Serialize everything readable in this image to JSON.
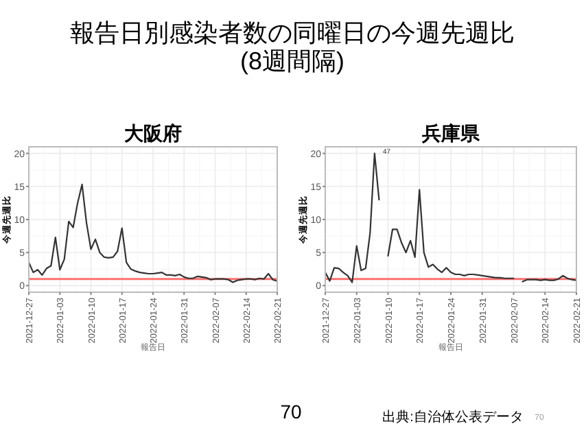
{
  "chart_data": [
    {
      "type": "line",
      "title": "大阪府",
      "xlabel": "報告日",
      "ylabel": "今週先週比",
      "annotations": [
        "報告日別感染者数の同曜日の今週先週比\n(8週間隔)",
        "70",
        "出典:自治体公表データ",
        "70"
      ],
      "x": [
        "2021-12-27",
        "2021-12-28",
        "2021-12-29",
        "2021-12-30",
        "2021-12-31",
        "2022-01-01",
        "2022-01-02",
        "2022-01-03",
        "2022-01-04",
        "2022-01-05",
        "2022-01-06",
        "2022-01-07",
        "2022-01-08",
        "2022-01-09",
        "2022-01-10",
        "2022-01-11",
        "2022-01-12",
        "2022-01-13",
        "2022-01-14",
        "2022-01-15",
        "2022-01-16",
        "2022-01-17",
        "2022-01-18",
        "2022-01-19",
        "2022-01-20",
        "2022-01-21",
        "2022-01-22",
        "2022-01-23",
        "2022-01-24",
        "2022-01-25",
        "2022-01-26",
        "2022-01-27",
        "2022-01-28",
        "2022-01-29",
        "2022-01-30",
        "2022-01-31",
        "2022-02-01",
        "2022-02-02",
        "2022-02-03",
        "2022-02-04",
        "2022-02-05",
        "2022-02-06",
        "2022-02-07",
        "2022-02-08",
        "2022-02-09",
        "2022-02-10",
        "2022-02-11",
        "2022-02-12",
        "2022-02-13",
        "2022-02-14",
        "2022-02-15",
        "2022-02-16",
        "2022-02-17",
        "2022-02-18",
        "2022-02-19",
        "2022-02-20",
        "2022-02-21"
      ],
      "series": [
        {
          "color": "#333333",
          "values": [
            3.5,
            2.0,
            2.4,
            1.6,
            2.6,
            3.0,
            7.3,
            2.4,
            4.0,
            9.7,
            8.8,
            12.5,
            15.3,
            9.5,
            5.5,
            7.0,
            5.0,
            4.3,
            4.2,
            4.3,
            5.2,
            8.7,
            3.5,
            2.5,
            2.2,
            2.0,
            1.9,
            1.8,
            1.8,
            1.9,
            2.0,
            1.6,
            1.6,
            1.5,
            1.7,
            1.3,
            1.1,
            1.1,
            1.4,
            1.3,
            1.2,
            0.9,
            1.0,
            1.0,
            1.0,
            0.9,
            0.5,
            0.8,
            0.9,
            1.0,
            1.0,
            0.9,
            1.1,
            1.0,
            1.8,
            0.9,
            0.7
          ]
        }
      ],
      "ref_lines": [
        {
          "axis": "y",
          "value": 1,
          "color": "#ff7070"
        }
      ],
      "xlim": [
        "2021-12-27",
        "2022-02-21"
      ],
      "xticks": [
        "2021-12-27",
        "2022-01-03",
        "2022-01-10",
        "2022-01-17",
        "2022-01-24",
        "2022-01-31",
        "2022-02-07",
        "2022-02-14",
        "2022-02-21"
      ],
      "ylim": [
        -1,
        21
      ],
      "yticks": [
        0,
        5,
        10,
        15,
        20
      ],
      "grid": true
    },
    {
      "type": "line",
      "title": "兵庫県",
      "xlabel": "報告日",
      "ylabel": "今週先週比",
      "annotations": [
        "47"
      ],
      "series": [
        {
          "color": "#333333",
          "x": [
            "2021-12-27",
            "2021-12-28",
            "2021-12-29",
            "2021-12-30",
            "2021-12-31",
            "2022-01-01",
            "2022-01-02",
            "2022-01-03",
            "2022-01-04",
            "2022-01-05",
            "2022-01-06",
            "2022-01-07",
            "2022-01-08"
          ],
          "values": [
            2.0,
            0.7,
            2.7,
            2.6,
            2.0,
            1.5,
            0.5,
            6.0,
            2.3,
            2.6,
            8.0,
            20.0,
            13.0
          ]
        },
        {
          "color": "#333333",
          "x": [
            "2022-01-10",
            "2022-01-11",
            "2022-01-12",
            "2022-01-13",
            "2022-01-14",
            "2022-01-15",
            "2022-01-16",
            "2022-01-17",
            "2022-01-18",
            "2022-01-19",
            "2022-01-20",
            "2022-01-21",
            "2022-01-22",
            "2022-01-23",
            "2022-01-24",
            "2022-01-25",
            "2022-01-26",
            "2022-01-27",
            "2022-01-28",
            "2022-01-29",
            "2022-01-30",
            "2022-01-31",
            "2022-02-01",
            "2022-02-02",
            "2022-02-03",
            "2022-02-04",
            "2022-02-05",
            "2022-02-06",
            "2022-02-07"
          ],
          "values": [
            4.5,
            8.5,
            8.5,
            6.5,
            5.0,
            6.8,
            4.3,
            14.5,
            5.0,
            2.8,
            3.2,
            2.5,
            2.0,
            2.7,
            2.0,
            1.7,
            1.7,
            1.5,
            1.7,
            1.7,
            1.6,
            1.5,
            1.4,
            1.3,
            1.2,
            1.2,
            1.1,
            1.1,
            1.1
          ]
        },
        {
          "color": "#333333",
          "x": [
            "2022-02-09",
            "2022-02-10",
            "2022-02-11",
            "2022-02-12",
            "2022-02-13",
            "2022-02-14",
            "2022-02-15",
            "2022-02-16",
            "2022-02-17",
            "2022-02-18",
            "2022-02-19",
            "2022-02-20",
            "2022-02-21"
          ],
          "values": [
            0.6,
            0.9,
            0.9,
            0.9,
            0.8,
            0.9,
            0.8,
            0.8,
            1.0,
            1.5,
            1.1,
            0.9,
            0.8
          ]
        }
      ],
      "ref_lines": [
        {
          "axis": "y",
          "value": 1,
          "color": "#ff7070"
        }
      ],
      "xlim": [
        "2021-12-27",
        "2022-02-21"
      ],
      "xticks": [
        "2021-12-27",
        "2022-01-03",
        "2022-01-10",
        "2022-01-17",
        "2022-01-24",
        "2022-01-31",
        "2022-02-07",
        "2022-02-14",
        "2022-02-21"
      ],
      "ylim": [
        -1,
        21
      ],
      "yticks": [
        0,
        5,
        10,
        15,
        20
      ],
      "grid": true
    }
  ]
}
